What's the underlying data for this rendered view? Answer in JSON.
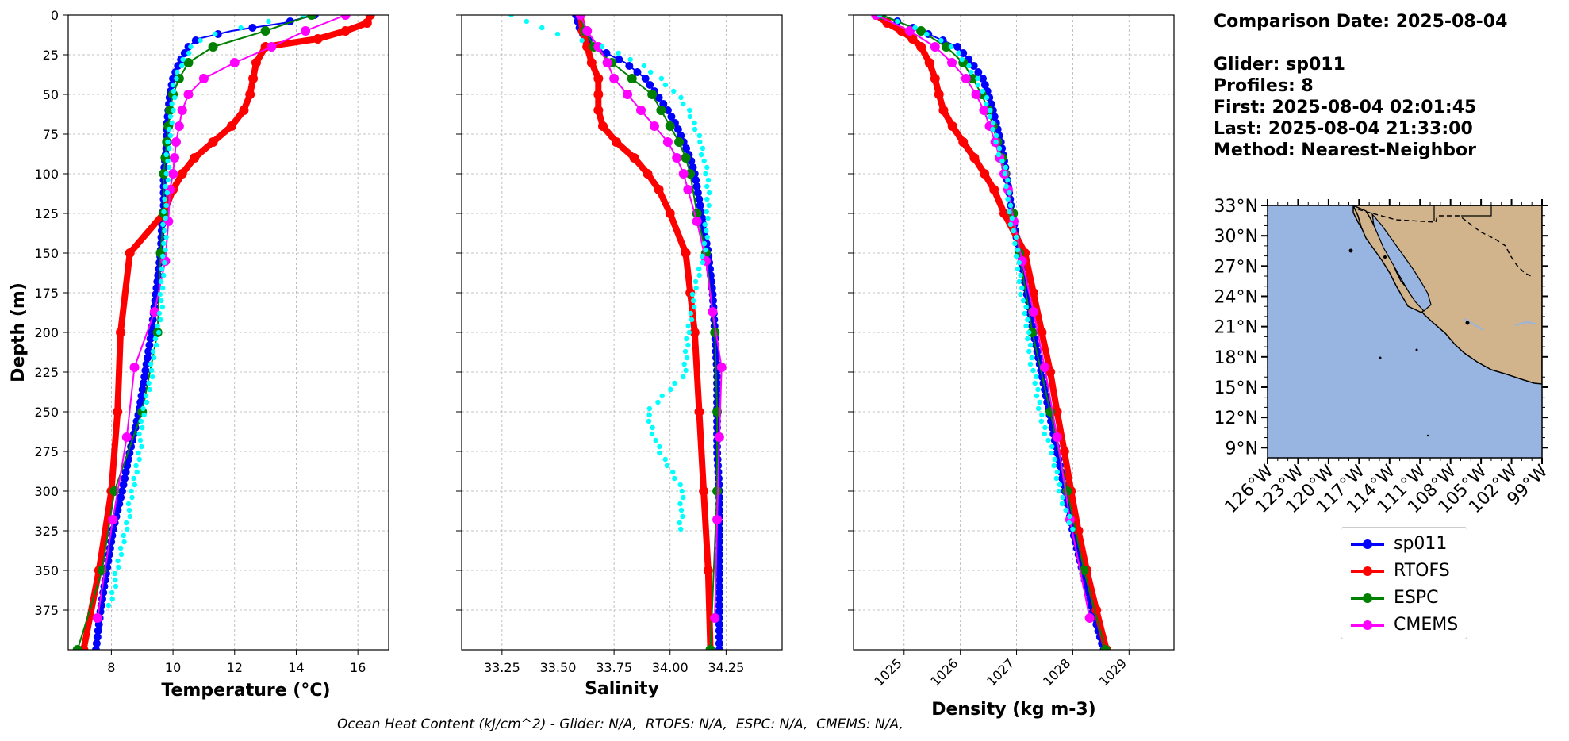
{
  "info": {
    "comparison_date": "Comparison Date: 2025-08-04",
    "glider": "Glider: sp011",
    "profiles": "Profiles: 8",
    "first": "First: 2025-08-04 02:01:45",
    "last": "Last: 2025-08-04 21:33:00",
    "method": "Method: Nearest-Neighbor"
  },
  "footnote": "Ocean Heat Content (kJ/cm^2) - Glider: N/A,  RTOFS: N/A,  ESPC: N/A,  CMEMS: N/A,",
  "colors": {
    "sp011": "#0000ff",
    "RTOFS": "#ff0000",
    "ESPC": "#008000",
    "CMEMS": "#ff00ff",
    "glider_raw": "#00ffff",
    "ocean": "#98b4e0",
    "land": "#d2b48c"
  },
  "legend": [
    {
      "name": "sp011",
      "color": "#0000ff"
    },
    {
      "name": "RTOFS",
      "color": "#ff0000"
    },
    {
      "name": "ESPC",
      "color": "#008000"
    },
    {
      "name": "CMEMS",
      "color": "#ff00ff"
    }
  ],
  "chart_data": [
    {
      "type": "line",
      "title": "",
      "xlabel": "Temperature (°C)",
      "ylabel": "Depth (m)",
      "xlim": [
        6.6,
        17.0
      ],
      "ylim": [
        400,
        0
      ],
      "xticks": [
        "8",
        "10",
        "12",
        "14",
        "16"
      ],
      "yticks": [
        "0",
        "25",
        "50",
        "75",
        "100",
        "125",
        "150",
        "175",
        "200",
        "225",
        "250",
        "275",
        "300",
        "325",
        "350",
        "375"
      ],
      "grid": true,
      "series": [
        {
          "name": "sp011",
          "depth": [
            0,
            5,
            10,
            15,
            20,
            30,
            40,
            50,
            60,
            70,
            80,
            90,
            100,
            110,
            120,
            130,
            150,
            175,
            200,
            225,
            250,
            275,
            300,
            325,
            350,
            375,
            400
          ],
          "values": [
            14.6,
            13.6,
            11.9,
            10.8,
            10.5,
            10.2,
            10.0,
            9.9,
            9.85,
            9.8,
            9.8,
            9.75,
            9.7,
            9.7,
            9.7,
            9.65,
            9.6,
            9.45,
            9.3,
            9.1,
            8.9,
            8.6,
            8.35,
            8.05,
            7.85,
            7.65,
            7.5
          ]
        },
        {
          "name": "RTOFS",
          "depth": [
            0,
            5,
            10,
            15,
            20,
            30,
            40,
            50,
            60,
            70,
            80,
            90,
            100,
            110,
            125,
            150,
            200,
            250,
            300,
            350,
            400
          ],
          "values": [
            16.4,
            16.3,
            15.6,
            14.7,
            13.0,
            12.7,
            12.6,
            12.5,
            12.3,
            11.9,
            11.3,
            10.7,
            10.3,
            10.0,
            9.7,
            8.6,
            8.3,
            8.2,
            8.0,
            7.6,
            7.1
          ]
        },
        {
          "name": "ESPC",
          "depth": [
            0,
            10,
            20,
            30,
            40,
            50,
            60,
            70,
            80,
            90,
            100,
            125,
            150,
            200,
            250,
            300,
            350,
            400
          ],
          "values": [
            14.5,
            13.0,
            11.3,
            10.5,
            10.2,
            10.0,
            9.9,
            9.85,
            9.8,
            9.75,
            9.7,
            9.7,
            9.6,
            9.5,
            9.0,
            8.1,
            7.7,
            6.9
          ]
        },
        {
          "name": "CMEMS",
          "depth": [
            0,
            10,
            20,
            30,
            40,
            50,
            60,
            70,
            80,
            90,
            100,
            110,
            130,
            155,
            187,
            222,
            266,
            318,
            380
          ],
          "values": [
            15.6,
            14.3,
            13.2,
            12.0,
            11.0,
            10.5,
            10.3,
            10.2,
            10.1,
            10.05,
            10.0,
            9.9,
            9.85,
            9.75,
            9.4,
            8.75,
            8.5,
            8.05,
            7.55
          ]
        },
        {
          "name": "glider raw",
          "depth": [
            0,
            5,
            10,
            15,
            20,
            30,
            40,
            50,
            75,
            100,
            125,
            150,
            175,
            200,
            225,
            250,
            275,
            300,
            325,
            350,
            375
          ],
          "values": [
            14.3,
            12.8,
            11.7,
            10.9,
            10.6,
            10.3,
            10.1,
            10.0,
            9.9,
            9.8,
            9.75,
            9.7,
            9.65,
            9.5,
            9.3,
            9.05,
            8.9,
            8.7,
            8.45,
            8.2,
            7.9
          ]
        }
      ]
    },
    {
      "type": "line",
      "title": "",
      "xlabel": "Salinity",
      "ylabel": "",
      "xlim": [
        33.07,
        34.5
      ],
      "ylim": [
        400,
        0
      ],
      "xticks": [
        "33.25",
        "33.50",
        "33.75",
        "34.00",
        "34.25"
      ],
      "grid": true,
      "series": [
        {
          "name": "sp011",
          "depth": [
            0,
            10,
            20,
            30,
            40,
            50,
            60,
            70,
            80,
            90,
            100,
            125,
            150,
            175,
            200,
            225,
            250,
            275,
            300,
            325,
            350,
            375,
            400
          ],
          "values": [
            33.58,
            33.6,
            33.66,
            33.8,
            33.89,
            33.94,
            33.99,
            34.03,
            34.06,
            34.09,
            34.11,
            34.14,
            34.17,
            34.19,
            34.2,
            34.21,
            34.21,
            34.21,
            34.22,
            34.22,
            34.22,
            34.22,
            34.22
          ]
        },
        {
          "name": "RTOFS",
          "depth": [
            0,
            10,
            20,
            30,
            40,
            50,
            60,
            70,
            80,
            90,
            100,
            110,
            125,
            150,
            175,
            200,
            250,
            300,
            350,
            400
          ],
          "values": [
            33.6,
            33.61,
            33.63,
            33.65,
            33.68,
            33.68,
            33.68,
            33.7,
            33.76,
            33.84,
            33.9,
            33.95,
            34.0,
            34.07,
            34.09,
            34.11,
            34.13,
            34.15,
            34.17,
            34.18
          ]
        },
        {
          "name": "ESPC",
          "depth": [
            0,
            10,
            20,
            30,
            40,
            50,
            60,
            70,
            80,
            90,
            100,
            125,
            150,
            200,
            250,
            300,
            400
          ],
          "values": [
            33.6,
            33.62,
            33.66,
            33.74,
            33.83,
            33.92,
            33.96,
            34.0,
            34.04,
            34.07,
            34.09,
            34.12,
            34.16,
            34.2,
            34.21,
            34.21,
            34.18
          ]
        },
        {
          "name": "CMEMS",
          "depth": [
            0,
            10,
            20,
            30,
            40,
            50,
            60,
            70,
            80,
            90,
            100,
            110,
            130,
            155,
            187,
            222,
            266,
            318,
            380
          ],
          "values": [
            33.6,
            33.63,
            33.68,
            33.72,
            33.75,
            33.81,
            33.87,
            33.93,
            33.99,
            34.03,
            34.06,
            34.08,
            34.12,
            34.16,
            34.19,
            34.23,
            34.22,
            34.21,
            34.2
          ]
        },
        {
          "name": "glider raw",
          "depth": [
            0,
            10,
            20,
            30,
            40,
            50,
            60,
            70,
            80,
            90,
            100,
            110,
            125,
            150,
            175,
            200,
            225,
            250,
            275,
            300,
            325
          ],
          "values": [
            33.3,
            33.45,
            33.7,
            33.86,
            33.96,
            34.03,
            34.08,
            34.11,
            34.14,
            34.15,
            34.16,
            34.17,
            34.17,
            34.15,
            34.11,
            34.08,
            34.07,
            33.9,
            33.95,
            34.06,
            34.04
          ]
        }
      ]
    },
    {
      "type": "line",
      "title": "",
      "xlabel": "Density (kg m-3)",
      "ylabel": "",
      "xlim": [
        1024.1,
        1029.8
      ],
      "ylim": [
        400,
        0
      ],
      "xticks": [
        "1025",
        "1026",
        "1027",
        "1028",
        "1029"
      ],
      "grid": true,
      "series": [
        {
          "name": "sp011",
          "depth": [
            0,
            10,
            20,
            30,
            40,
            50,
            60,
            70,
            80,
            90,
            100,
            125,
            150,
            175,
            200,
            225,
            250,
            275,
            300,
            325,
            350,
            375,
            400
          ],
          "values": [
            1024.6,
            1025.3,
            1025.95,
            1026.2,
            1026.4,
            1026.5,
            1026.58,
            1026.65,
            1026.72,
            1026.77,
            1026.82,
            1026.92,
            1027.05,
            1027.18,
            1027.3,
            1027.44,
            1027.58,
            1027.72,
            1027.86,
            1028.0,
            1028.17,
            1028.35,
            1028.55
          ]
        },
        {
          "name": "RTOFS",
          "depth": [
            0,
            5,
            10,
            15,
            20,
            30,
            40,
            50,
            60,
            70,
            80,
            90,
            100,
            110,
            125,
            150,
            175,
            200,
            225,
            250,
            275,
            300,
            325,
            350,
            375,
            400
          ],
          "values": [
            1024.5,
            1024.7,
            1024.95,
            1025.15,
            1025.3,
            1025.45,
            1025.55,
            1025.62,
            1025.7,
            1025.86,
            1026.05,
            1026.25,
            1026.43,
            1026.6,
            1026.78,
            1027.15,
            1027.3,
            1027.45,
            1027.6,
            1027.72,
            1027.85,
            1027.97,
            1028.1,
            1028.25,
            1028.42,
            1028.6
          ]
        },
        {
          "name": "ESPC",
          "depth": [
            0,
            10,
            20,
            30,
            40,
            50,
            60,
            70,
            80,
            90,
            100,
            125,
            150,
            200,
            250,
            300,
            350,
            400
          ],
          "values": [
            1024.6,
            1025.3,
            1025.75,
            1026.05,
            1026.22,
            1026.38,
            1026.5,
            1026.58,
            1026.66,
            1026.74,
            1026.8,
            1026.94,
            1027.05,
            1027.28,
            1027.6,
            1027.9,
            1028.2,
            1028.58
          ]
        },
        {
          "name": "CMEMS",
          "depth": [
            0,
            10,
            20,
            30,
            40,
            50,
            60,
            70,
            80,
            90,
            100,
            110,
            130,
            155,
            187,
            222,
            266,
            318,
            380
          ],
          "values": [
            1024.5,
            1025.1,
            1025.55,
            1025.85,
            1026.1,
            1026.28,
            1026.42,
            1026.52,
            1026.62,
            1026.7,
            1026.78,
            1026.85,
            1026.95,
            1027.1,
            1027.3,
            1027.5,
            1027.72,
            1027.95,
            1028.3
          ]
        },
        {
          "name": "glider raw",
          "depth": [
            0,
            10,
            20,
            30,
            40,
            50,
            60,
            70,
            80,
            90,
            100,
            125,
            150,
            175,
            200,
            225,
            250,
            275,
            300,
            325
          ],
          "values": [
            1024.6,
            1025.3,
            1025.85,
            1026.1,
            1026.3,
            1026.42,
            1026.5,
            1026.58,
            1026.66,
            1026.73,
            1026.8,
            1026.9,
            1027.0,
            1027.1,
            1027.2,
            1027.3,
            1027.42,
            1027.62,
            1027.78,
            1027.98
          ]
        }
      ]
    },
    {
      "type": "map",
      "lat_ticks": [
        "33°N",
        "30°N",
        "27°N",
        "24°N",
        "21°N",
        "18°N",
        "15°N",
        "12°N",
        "9°N"
      ],
      "lon_ticks": [
        "126°W",
        "123°W",
        "120°W",
        "117°W",
        "114°W",
        "111°W",
        "108°W",
        "105°W",
        "102°W",
        "99°W"
      ],
      "extent": {
        "lon": [
          -126,
          -99
        ],
        "lat": [
          8,
          33
        ]
      }
    }
  ]
}
